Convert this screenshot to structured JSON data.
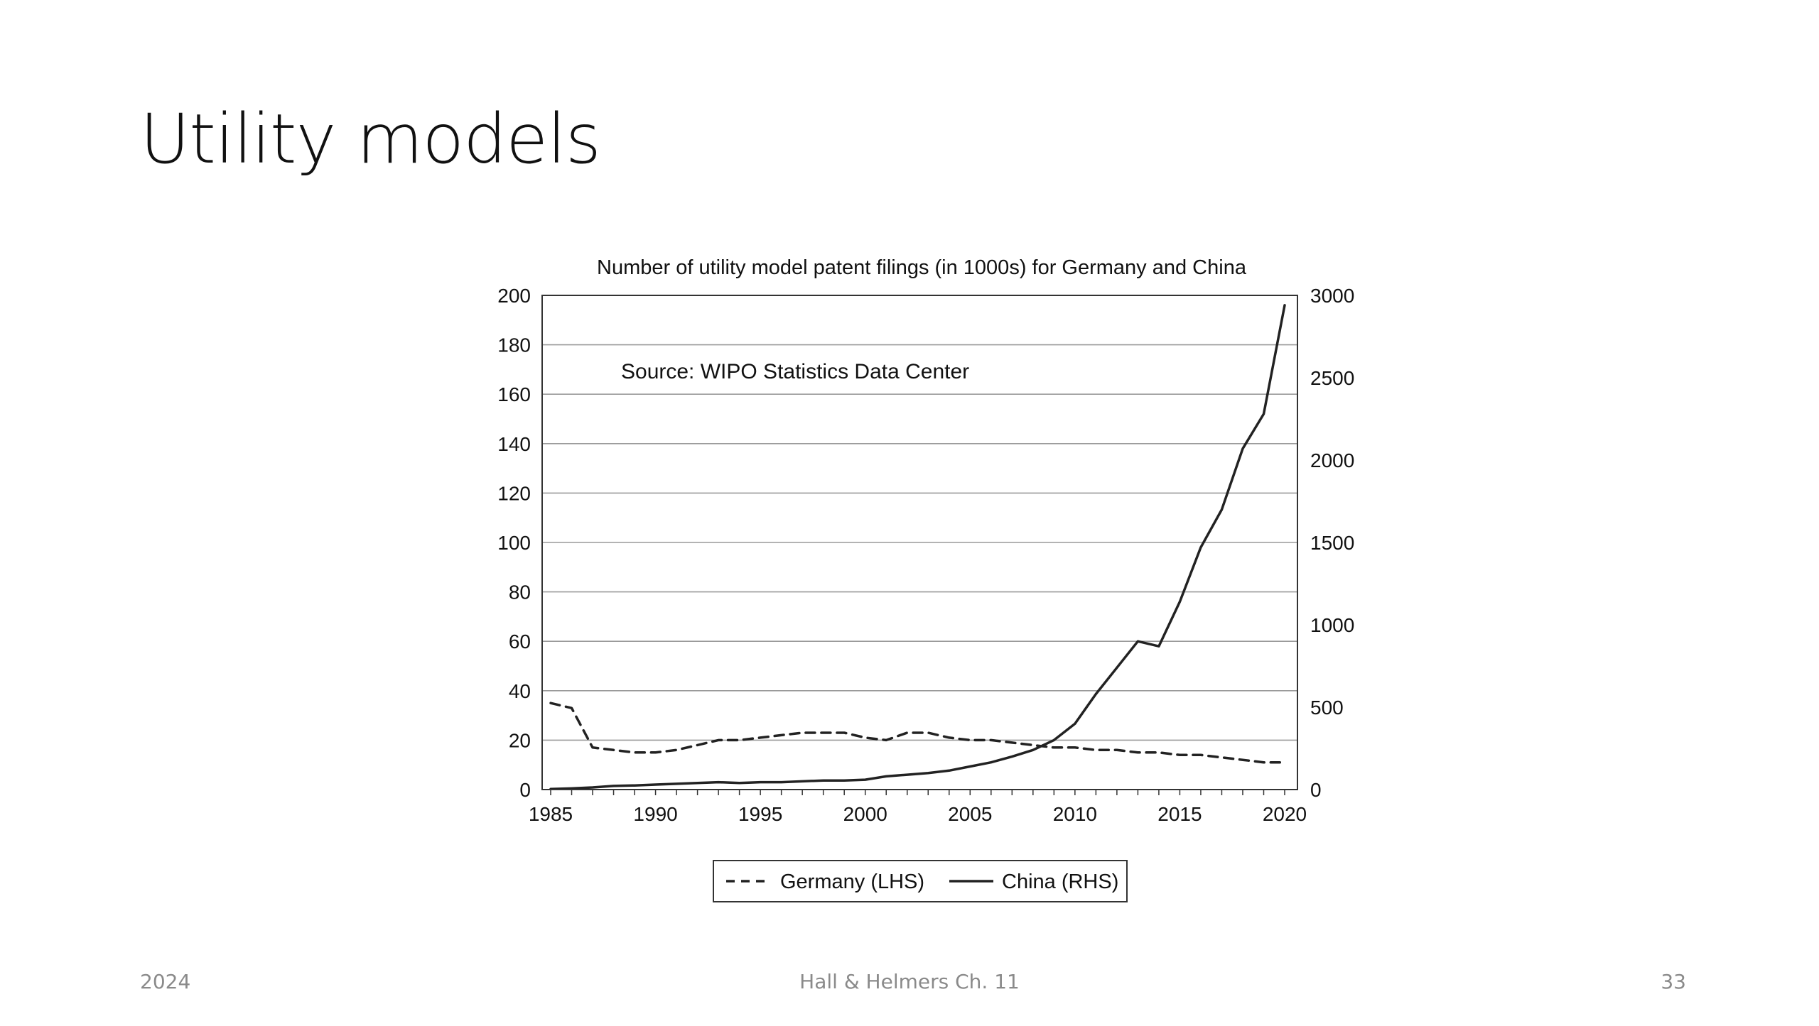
{
  "slide": {
    "title": "Utility models",
    "footer_left": "2024",
    "footer_center": "Hall & Helmers Ch. 11",
    "page_number": "33"
  },
  "chart_data": {
    "type": "line",
    "title": "Number of utility model patent filings (in 1000s) for Germany and China",
    "annotation": "Source: WIPO Statistics Data Center",
    "x": [
      1985,
      1986,
      1987,
      1988,
      1989,
      1990,
      1991,
      1992,
      1993,
      1994,
      1995,
      1996,
      1997,
      1998,
      1999,
      2000,
      2001,
      2002,
      2003,
      2004,
      2005,
      2006,
      2007,
      2008,
      2009,
      2010,
      2011,
      2012,
      2013,
      2014,
      2015,
      2016,
      2017,
      2018,
      2019,
      2020
    ],
    "xlim": [
      1985,
      2020
    ],
    "xticks": [
      "1985",
      "1990",
      "1995",
      "2000",
      "2005",
      "2010",
      "2015",
      "2020"
    ],
    "ylim_left": [
      0,
      200
    ],
    "yticks_left": [
      "0",
      "20",
      "40",
      "60",
      "80",
      "100",
      "120",
      "140",
      "160",
      "180",
      "200"
    ],
    "ylim_right": [
      0,
      3000
    ],
    "yticks_right": [
      "0",
      "500",
      "1000",
      "1500",
      "2000",
      "2500",
      "3000"
    ],
    "grid": true,
    "legend_position": "bottom-center",
    "series": [
      {
        "name": "Germany (LHS)",
        "axis": "left",
        "style": "dashed",
        "color": "#222222",
        "values": [
          35,
          33,
          17,
          16,
          15,
          15,
          16,
          18,
          20,
          20,
          21,
          22,
          23,
          23,
          23,
          21,
          20,
          23,
          23,
          21,
          20,
          20,
          19,
          18,
          17,
          17,
          16,
          16,
          15,
          15,
          14,
          14,
          13,
          12,
          11,
          11
        ]
      },
      {
        "name": "China (RHS)",
        "axis": "right",
        "style": "solid",
        "color": "#222222",
        "values": [
          3,
          7,
          13,
          22,
          25,
          30,
          35,
          40,
          45,
          40,
          45,
          45,
          50,
          55,
          55,
          60,
          80,
          90,
          100,
          115,
          140,
          165,
          200,
          240,
          300,
          400,
          580,
          740,
          900,
          870,
          1140,
          1470,
          1700,
          2070,
          2280,
          2940
        ]
      }
    ]
  }
}
